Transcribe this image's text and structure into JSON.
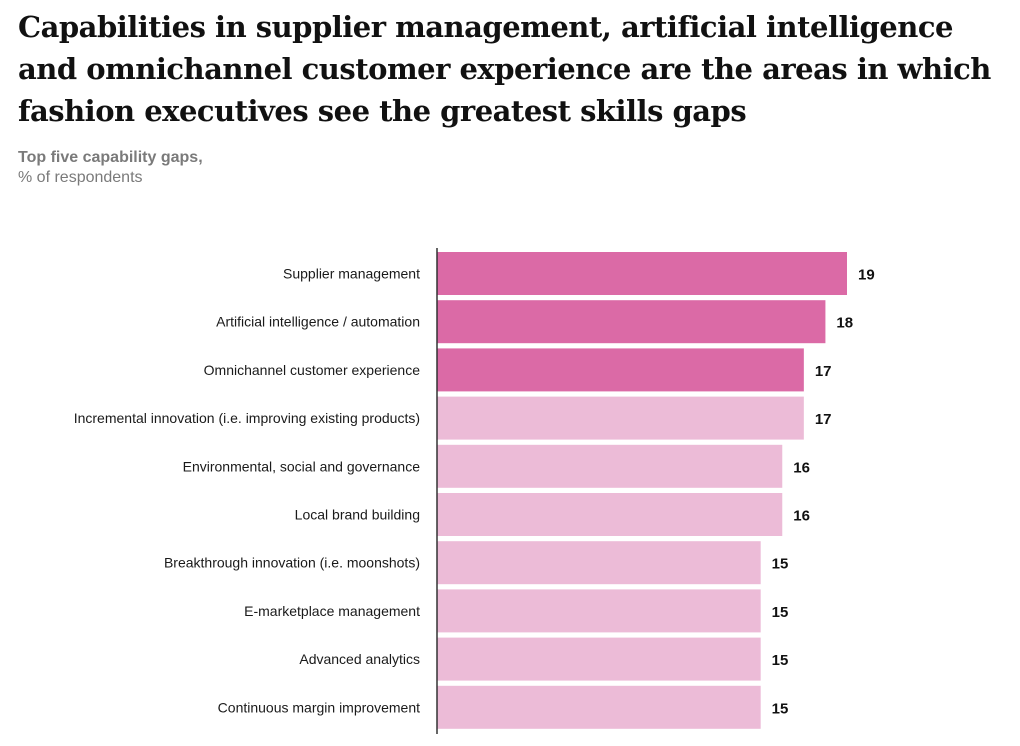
{
  "header": {
    "title": "Capabilities in supplier management, artificial intelligence and omnichannel customer experience are the areas in which fashion executives see the greatest skills gaps",
    "subtitle_line1": "Top five capability gaps,",
    "subtitle_line2": "% of respondents"
  },
  "colors": {
    "highlight": "#db6aa6",
    "normal": "#ecbbd7",
    "axis": "#333333"
  },
  "chart_data": {
    "type": "bar",
    "orientation": "horizontal",
    "categories": [
      "Supplier management",
      "Artificial intelligence / automation",
      "Omnichannel customer experience",
      "Incremental innovation (i.e. improving existing products)",
      "Environmental, social and governance",
      "Local brand building",
      "Breakthrough innovation (i.e. moonshots)",
      "E-marketplace management",
      "Advanced analytics",
      "Continuous margin improvement"
    ],
    "values": [
      19,
      18,
      17,
      17,
      16,
      16,
      15,
      15,
      15,
      15
    ],
    "highlighted": [
      true,
      true,
      true,
      false,
      false,
      false,
      false,
      false,
      false,
      false
    ],
    "xlim": [
      0,
      19
    ],
    "grid": false,
    "legend": "none"
  }
}
